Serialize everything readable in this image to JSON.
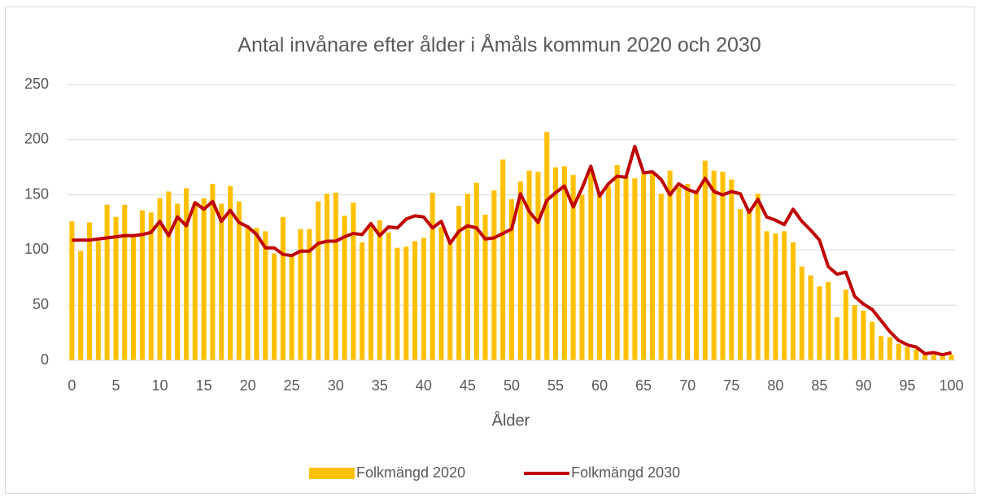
{
  "chart_data": {
    "type": "bar_line",
    "title": "Antal invånare efter ålder i Åmåls kommun 2020 och 2030",
    "x_label": "Ålder",
    "x": [
      0,
      1,
      2,
      3,
      4,
      5,
      6,
      7,
      8,
      9,
      10,
      11,
      12,
      13,
      14,
      15,
      16,
      17,
      18,
      19,
      20,
      21,
      22,
      23,
      24,
      25,
      26,
      27,
      28,
      29,
      30,
      31,
      32,
      33,
      34,
      35,
      36,
      37,
      38,
      39,
      40,
      41,
      42,
      43,
      44,
      45,
      46,
      47,
      48,
      49,
      50,
      51,
      52,
      53,
      54,
      55,
      56,
      57,
      58,
      59,
      60,
      61,
      62,
      63,
      64,
      65,
      66,
      67,
      68,
      69,
      70,
      71,
      72,
      73,
      74,
      75,
      76,
      77,
      78,
      79,
      80,
      81,
      82,
      83,
      84,
      85,
      86,
      87,
      88,
      89,
      90,
      91,
      92,
      93,
      94,
      95,
      96,
      97,
      98,
      99,
      100
    ],
    "series": [
      {
        "name": "Folkmängd 2020",
        "kind": "bar",
        "color": "#FFC000",
        "values": [
          126,
          99,
          125,
          108,
          141,
          130,
          141,
          112,
          136,
          134,
          147,
          153,
          142,
          156,
          143,
          147,
          160,
          142,
          158,
          144,
          121,
          120,
          117,
          97,
          130,
          94,
          119,
          119,
          144,
          151,
          152,
          131,
          143,
          107,
          122,
          127,
          116,
          102,
          103,
          108,
          111,
          152,
          121,
          108,
          140,
          151,
          161,
          132,
          154,
          182,
          146,
          162,
          172,
          171,
          207,
          175,
          176,
          168,
          150,
          170,
          152,
          158,
          177,
          167,
          165,
          170,
          170,
          151,
          172,
          157,
          160,
          152,
          181,
          172,
          171,
          164,
          137,
          137,
          151,
          117,
          115,
          117,
          107,
          85,
          77,
          67,
          71,
          39,
          64,
          50,
          45,
          35,
          22,
          21,
          15,
          12,
          10,
          5,
          5,
          4,
          5
        ]
      },
      {
        "name": "Folkmängd 2030",
        "kind": "line",
        "color": "#C00000",
        "values": [
          109,
          109,
          109,
          110,
          111,
          112,
          113,
          113,
          114,
          116,
          126,
          113,
          130,
          122,
          143,
          137,
          144,
          126,
          136,
          125,
          121,
          114,
          102,
          102,
          96,
          95,
          99,
          99,
          106,
          108,
          108,
          112,
          115,
          114,
          124,
          113,
          121,
          120,
          128,
          131,
          130,
          120,
          126,
          106,
          117,
          122,
          120,
          110,
          111,
          115,
          119,
          151,
          135,
          125,
          145,
          152,
          158,
          139,
          156,
          176,
          149,
          160,
          167,
          166,
          194,
          170,
          171,
          164,
          150,
          160,
          155,
          152,
          165,
          153,
          150,
          153,
          151,
          134,
          146,
          130,
          127,
          123,
          137,
          126,
          118,
          109,
          85,
          78,
          80,
          58,
          51,
          46,
          36,
          26,
          18,
          14,
          12,
          6,
          7,
          5,
          7
        ]
      }
    ],
    "xlim": [
      -0.5,
      100.5
    ],
    "xticks": [
      0,
      5,
      10,
      15,
      20,
      25,
      30,
      35,
      40,
      45,
      50,
      55,
      60,
      65,
      70,
      75,
      80,
      85,
      90,
      95,
      100
    ],
    "ylim": [
      0,
      250
    ],
    "yticks": [
      0,
      50,
      100,
      150,
      200,
      250
    ],
    "grid": true,
    "legend": "bottom"
  }
}
